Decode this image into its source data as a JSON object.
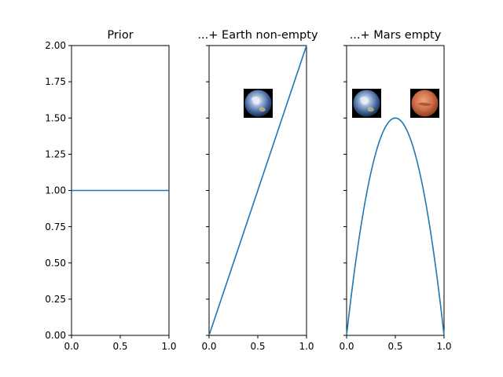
{
  "chart_data": [
    {
      "type": "line",
      "title": "Prior",
      "xlim": [
        0,
        1
      ],
      "ylim": [
        0,
        2
      ],
      "xticks": [
        "0.0",
        "0.5",
        "1.0"
      ],
      "yticks": [
        "0.00",
        "0.25",
        "0.50",
        "0.75",
        "1.00",
        "1.25",
        "1.50",
        "1.75",
        "2.00"
      ],
      "series": [
        {
          "x": [
            0,
            1
          ],
          "y": [
            1,
            1
          ]
        }
      ],
      "images": [],
      "color": "#1f77b4"
    },
    {
      "type": "line",
      "title": "...+ Earth non-empty",
      "xlim": [
        0,
        1
      ],
      "ylim": [
        0,
        2
      ],
      "xticks": [
        "0.0",
        "0.5",
        "1.0"
      ],
      "series": [
        {
          "x": [
            0,
            1
          ],
          "y": [
            0,
            2
          ]
        }
      ],
      "images": [
        "earth-icon"
      ],
      "color": "#1f77b4"
    },
    {
      "type": "line",
      "title": "...+ Mars empty",
      "xlim": [
        0,
        1
      ],
      "ylim": [
        0,
        2
      ],
      "xticks": [
        "0.0",
        "0.5",
        "1.0"
      ],
      "series": [
        {
          "function": "6*x*(1-x)",
          "samples": 60
        }
      ],
      "images": [
        "earth-icon",
        "mars-icon"
      ],
      "color": "#1f77b4"
    }
  ]
}
